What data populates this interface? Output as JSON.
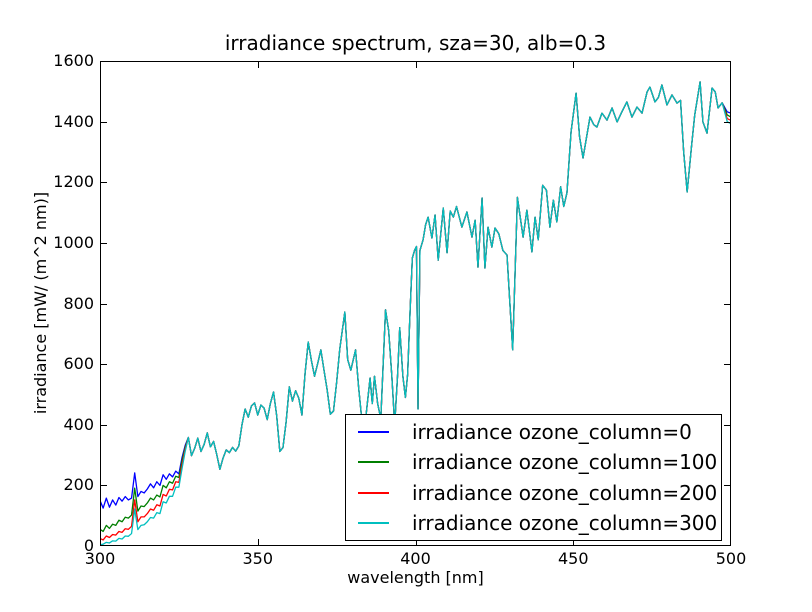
{
  "figure": {
    "title": "irradiance spectrum, sza=30, alb=0.3",
    "xlabel": "wavelength [nm]",
    "ylabel": "irradiance [mW/ (m^2 nm)]",
    "background_color": "#ffffff",
    "axis_color": "#000000"
  },
  "chart_data": {
    "type": "line",
    "title": "irradiance spectrum, sza=30, alb=0.3",
    "xlabel": "wavelength [nm]",
    "ylabel": "irradiance [mW/ (m^2 nm)]",
    "xlim": [
      300,
      500
    ],
    "ylim": [
      0,
      1600
    ],
    "xticks": [
      300,
      350,
      400,
      450,
      500
    ],
    "yticks": [
      0,
      200,
      400,
      600,
      800,
      1000,
      1200,
      1400,
      1600
    ],
    "grid": false,
    "legend_position": "lower-right-inside",
    "series": [
      {
        "name": "irradiance ozone_column=0",
        "color": "#0000ff",
        "head": [
          [
            300,
            150
          ],
          [
            301,
            125
          ],
          [
            302,
            158
          ],
          [
            303,
            128
          ],
          [
            304,
            152
          ],
          [
            305,
            135
          ],
          [
            306,
            160
          ],
          [
            307,
            148
          ],
          [
            308,
            163
          ],
          [
            309,
            152
          ],
          [
            310,
            158
          ],
          [
            311,
            241
          ],
          [
            312,
            163
          ],
          [
            313,
            180
          ],
          [
            314,
            175
          ],
          [
            315,
            188
          ],
          [
            316,
            205
          ],
          [
            317,
            192
          ],
          [
            318,
            212
          ],
          [
            319,
            200
          ],
          [
            320,
            235
          ],
          [
            321,
            220
          ],
          [
            322,
            238
          ],
          [
            323,
            228
          ],
          [
            324,
            247
          ],
          [
            325,
            238
          ],
          [
            326,
            292
          ],
          [
            327,
            332
          ]
        ],
        "tail": [
          [
            498.8,
            1432
          ],
          [
            500,
            1428
          ]
        ]
      },
      {
        "name": "irradiance ozone_column=100",
        "color": "#007f00",
        "head": [
          [
            300,
            55
          ],
          [
            301,
            48
          ],
          [
            302,
            68
          ],
          [
            303,
            58
          ],
          [
            304,
            72
          ],
          [
            305,
            68
          ],
          [
            306,
            85
          ],
          [
            307,
            80
          ],
          [
            308,
            95
          ],
          [
            309,
            92
          ],
          [
            310,
            102
          ],
          [
            311,
            191
          ],
          [
            312,
            115
          ],
          [
            313,
            132
          ],
          [
            314,
            130
          ],
          [
            315,
            142
          ],
          [
            316,
            158
          ],
          [
            317,
            152
          ],
          [
            318,
            168
          ],
          [
            319,
            162
          ],
          [
            320,
            200
          ],
          [
            321,
            192
          ],
          [
            322,
            212
          ],
          [
            323,
            207
          ],
          [
            324,
            230
          ],
          [
            325,
            226
          ],
          [
            326,
            282
          ],
          [
            327,
            326
          ]
        ],
        "tail": [
          [
            498.8,
            1422
          ],
          [
            500,
            1415
          ]
        ]
      },
      {
        "name": "irradiance ozone_column=200",
        "color": "#ff0000",
        "head": [
          [
            300,
            25
          ],
          [
            301,
            20
          ],
          [
            302,
            33
          ],
          [
            303,
            28
          ],
          [
            304,
            38
          ],
          [
            305,
            36
          ],
          [
            306,
            48
          ],
          [
            307,
            45
          ],
          [
            308,
            57
          ],
          [
            309,
            55
          ],
          [
            310,
            65
          ],
          [
            311,
            152
          ],
          [
            312,
            80
          ],
          [
            313,
            96
          ],
          [
            314,
            96
          ],
          [
            315,
            107
          ],
          [
            316,
            122
          ],
          [
            317,
            118
          ],
          [
            318,
            136
          ],
          [
            319,
            132
          ],
          [
            320,
            170
          ],
          [
            321,
            165
          ],
          [
            322,
            187
          ],
          [
            323,
            185
          ],
          [
            324,
            212
          ],
          [
            325,
            210
          ],
          [
            326,
            268
          ],
          [
            327,
            320
          ]
        ],
        "tail": [
          [
            498.8,
            1410
          ],
          [
            500,
            1404
          ]
        ]
      },
      {
        "name": "irradiance ozone_column=300",
        "color": "#00bfbf",
        "head": [
          [
            300,
            4
          ],
          [
            301,
            6
          ],
          [
            302,
            12
          ],
          [
            303,
            10
          ],
          [
            304,
            17
          ],
          [
            305,
            16
          ],
          [
            306,
            25
          ],
          [
            307,
            23
          ],
          [
            308,
            33
          ],
          [
            309,
            32
          ],
          [
            310,
            41
          ],
          [
            311,
            122
          ],
          [
            312,
            54
          ],
          [
            313,
            68
          ],
          [
            314,
            70
          ],
          [
            315,
            80
          ],
          [
            316,
            94
          ],
          [
            317,
            92
          ],
          [
            318,
            110
          ],
          [
            319,
            107
          ],
          [
            320,
            146
          ],
          [
            321,
            142
          ],
          [
            322,
            164
          ],
          [
            323,
            164
          ],
          [
            324,
            194
          ],
          [
            325,
            194
          ],
          [
            326,
            255
          ],
          [
            327,
            312
          ]
        ],
        "tail": [
          [
            498.8,
            1400
          ],
          [
            500,
            1393
          ]
        ]
      }
    ],
    "shared_points": [
      [
        328,
        358
      ],
      [
        329,
        298
      ],
      [
        330,
        322
      ],
      [
        331,
        356
      ],
      [
        332,
        312
      ],
      [
        333,
        335
      ],
      [
        334,
        373
      ],
      [
        335,
        327
      ],
      [
        336,
        345
      ],
      [
        337,
        302
      ],
      [
        338,
        253
      ],
      [
        339,
        290
      ],
      [
        340,
        317
      ],
      [
        341,
        308
      ],
      [
        342,
        325
      ],
      [
        343,
        313
      ],
      [
        344,
        330
      ],
      [
        345,
        400
      ],
      [
        346,
        452
      ],
      [
        347,
        425
      ],
      [
        348,
        462
      ],
      [
        349,
        472
      ],
      [
        350,
        432
      ],
      [
        351,
        465
      ],
      [
        352,
        455
      ],
      [
        353,
        417
      ],
      [
        354,
        470
      ],
      [
        355,
        508
      ],
      [
        356,
        430
      ],
      [
        357,
        312
      ],
      [
        358,
        325
      ],
      [
        359,
        410
      ],
      [
        360,
        525
      ],
      [
        361,
        478
      ],
      [
        362,
        512
      ],
      [
        363,
        488
      ],
      [
        364,
        432
      ],
      [
        365,
        570
      ],
      [
        366,
        673
      ],
      [
        367,
        612
      ],
      [
        368,
        560
      ],
      [
        369,
        602
      ],
      [
        370,
        647
      ],
      [
        371,
        580
      ],
      [
        372,
        515
      ],
      [
        373,
        435
      ],
      [
        374,
        445
      ],
      [
        375,
        540
      ],
      [
        376,
        650
      ],
      [
        377.6,
        772
      ],
      [
        378.5,
        615
      ],
      [
        379.5,
        580
      ],
      [
        381,
        647
      ],
      [
        382,
        520
      ],
      [
        383,
        415
      ],
      [
        384,
        400
      ],
      [
        385.6,
        554
      ],
      [
        386.3,
        470
      ],
      [
        387,
        560
      ],
      [
        388,
        470
      ],
      [
        389,
        420
      ],
      [
        390.5,
        779
      ],
      [
        391.5,
        710
      ],
      [
        392.5,
        560
      ],
      [
        393.4,
        400
      ],
      [
        394.3,
        560
      ],
      [
        395,
        720
      ],
      [
        396,
        560
      ],
      [
        396.8,
        490
      ],
      [
        397.5,
        565
      ],
      [
        398.3,
        780
      ],
      [
        399,
        950
      ],
      [
        399.7,
        975
      ],
      [
        400.3,
        988
      ],
      [
        400.8,
        452
      ],
      [
        401.4,
        975
      ],
      [
        402.4,
        1010
      ],
      [
        403.2,
        1060
      ],
      [
        404,
        1085
      ],
      [
        405.2,
        1016
      ],
      [
        406.2,
        1092
      ],
      [
        407.2,
        943
      ],
      [
        408.8,
        1115
      ],
      [
        410,
        967
      ],
      [
        411,
        1105
      ],
      [
        412,
        1085
      ],
      [
        413,
        1120
      ],
      [
        414.7,
        1052
      ],
      [
        416.3,
        1102
      ],
      [
        417.9,
        1019
      ],
      [
        418.9,
        1075
      ],
      [
        419.8,
        920
      ],
      [
        421.1,
        1148
      ],
      [
        422,
        917
      ],
      [
        423,
        1052
      ],
      [
        424.2,
        986
      ],
      [
        425.2,
        1049
      ],
      [
        426.4,
        1030
      ],
      [
        427.7,
        975
      ],
      [
        429,
        960
      ],
      [
        430.8,
        647
      ],
      [
        432.3,
        1150
      ],
      [
        434.1,
        1019
      ],
      [
        435.3,
        1108
      ],
      [
        436.9,
        970
      ],
      [
        437.9,
        1085
      ],
      [
        438.9,
        1010
      ],
      [
        440.3,
        1190
      ],
      [
        441.5,
        1174
      ],
      [
        442.6,
        1052
      ],
      [
        443.7,
        1141
      ],
      [
        444.8,
        1069
      ],
      [
        446,
        1185
      ],
      [
        447,
        1120
      ],
      [
        448,
        1165
      ],
      [
        449.3,
        1366
      ],
      [
        450.9,
        1494
      ],
      [
        452,
        1350
      ],
      [
        453.1,
        1280
      ],
      [
        455.3,
        1415
      ],
      [
        456.5,
        1390
      ],
      [
        457.5,
        1382
      ],
      [
        459.1,
        1428
      ],
      [
        460.7,
        1405
      ],
      [
        462.3,
        1445
      ],
      [
        463.9,
        1399
      ],
      [
        465.4,
        1432
      ],
      [
        467,
        1465
      ],
      [
        468.6,
        1415
      ],
      [
        470.2,
        1448
      ],
      [
        471.8,
        1428
      ],
      [
        473.4,
        1498
      ],
      [
        474.3,
        1514
      ],
      [
        475.9,
        1465
      ],
      [
        477,
        1480
      ],
      [
        478.1,
        1521
      ],
      [
        479.7,
        1455
      ],
      [
        481.3,
        1488
      ],
      [
        482.9,
        1461
      ],
      [
        484,
        1470
      ],
      [
        485,
        1300
      ],
      [
        486.1,
        1168
      ],
      [
        487.5,
        1320
      ],
      [
        488.5,
        1422
      ],
      [
        490.2,
        1531
      ],
      [
        491.1,
        1399
      ],
      [
        492.4,
        1362
      ],
      [
        494,
        1511
      ],
      [
        495,
        1498
      ],
      [
        495.9,
        1445
      ],
      [
        497.2,
        1462
      ]
    ],
    "line_width": 1.3,
    "tick_length": 6
  }
}
